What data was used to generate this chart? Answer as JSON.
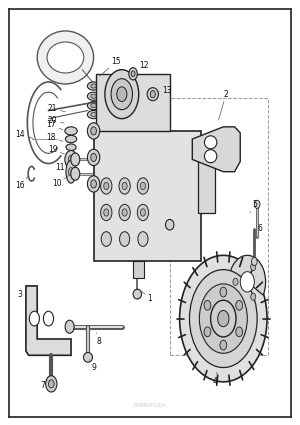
{
  "bg_outer": "#ffffff",
  "bg_inner": "#ffffff",
  "border_color": "#222222",
  "line_dark": "#222222",
  "line_mid": "#555555",
  "line_light": "#888888",
  "fill_light": "#e8e8e8",
  "fill_mid": "#d0d0d0",
  "fill_dark": "#b8b8b8",
  "fig_width": 3.0,
  "fig_height": 4.25,
  "dpi": 100,
  "watermark": "EMBRAFILIDA"
}
